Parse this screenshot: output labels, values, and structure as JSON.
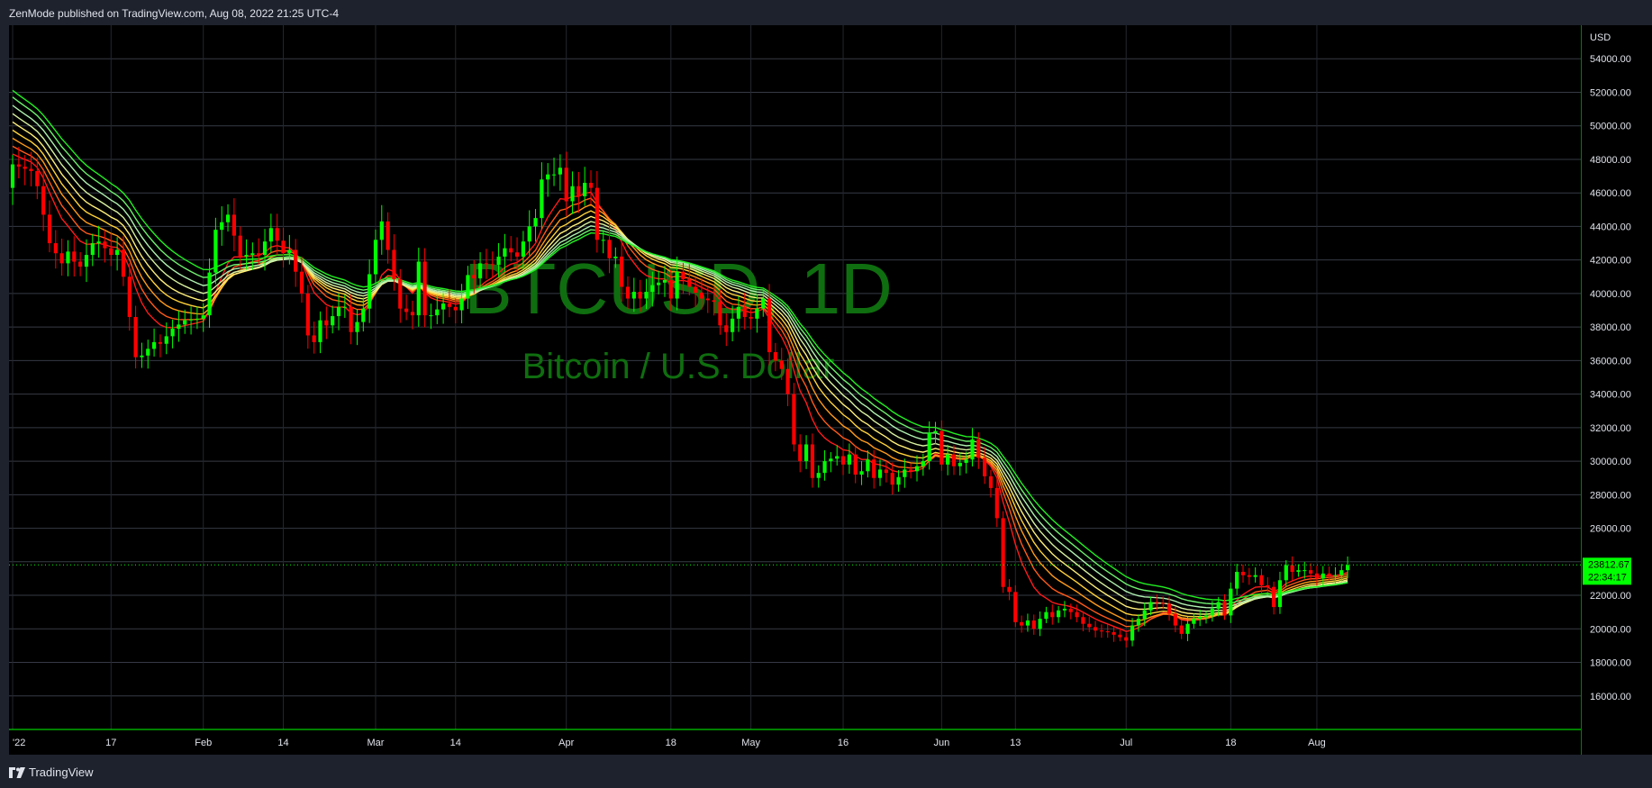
{
  "header": {
    "published_text": "ZenMode published on TradingView.com, Aug 08, 2022 21:25 UTC-4"
  },
  "watermark": {
    "symbol": "BTCUSD, 1D",
    "description": "Bitcoin / U.S. Dollar"
  },
  "footer": {
    "brand": "TradingView"
  },
  "price_scale": {
    "currency": "USD"
  },
  "last_price": {
    "value_text": "23812.67",
    "countdown_text": "22:34:17",
    "value": 23812.67
  },
  "colors": {
    "up": "#00ff00",
    "down": "#ff0000",
    "grid": "#363a45",
    "axis": "#00ff00",
    "watermark": "#0f6e0f"
  },
  "chart_data": {
    "type": "candlestick",
    "title": "BTCUSD, 1D",
    "subtitle": "Bitcoin / U.S. Dollar",
    "ylabel": "USD",
    "ylim": [
      14000,
      56000
    ],
    "grid": true,
    "y_ticks": [
      "54000.00",
      "52000.00",
      "50000.00",
      "48000.00",
      "46000.00",
      "44000.00",
      "42000.00",
      "40000.00",
      "38000.00",
      "36000.00",
      "34000.00",
      "32000.00",
      "30000.00",
      "28000.00",
      "26000.00",
      "24000.00",
      "22000.00",
      "20000.00",
      "18000.00",
      "16000.00"
    ],
    "x_ticks": [
      {
        "label": "'22",
        "day": 0
      },
      {
        "label": "17",
        "day": 16
      },
      {
        "label": "Feb",
        "day": 31
      },
      {
        "label": "14",
        "day": 44
      },
      {
        "label": "Mar",
        "day": 59
      },
      {
        "label": "14",
        "day": 72
      },
      {
        "label": "Apr",
        "day": 90
      },
      {
        "label": "18",
        "day": 107
      },
      {
        "label": "May",
        "day": 120
      },
      {
        "label": "16",
        "day": 135
      },
      {
        "label": "Jun",
        "day": 151
      },
      {
        "label": "13",
        "day": 163
      },
      {
        "label": "Jul",
        "day": 181
      },
      {
        "label": "18",
        "day": 198
      },
      {
        "label": "Aug",
        "day": 212
      }
    ],
    "close_anchors": [
      [
        0,
        47700
      ],
      [
        3,
        47300
      ],
      [
        4,
        46400
      ],
      [
        6,
        43000
      ],
      [
        8,
        41800
      ],
      [
        9,
        42500
      ],
      [
        10,
        41900
      ],
      [
        11,
        41600
      ],
      [
        13,
        43000
      ],
      [
        14,
        43100
      ],
      [
        16,
        42300
      ],
      [
        17,
        42600
      ],
      [
        18,
        41000
      ],
      [
        20,
        36200
      ],
      [
        21,
        36300
      ],
      [
        22,
        36700
      ],
      [
        23,
        37100
      ],
      [
        24,
        37000
      ],
      [
        26,
        37900
      ],
      [
        28,
        38400
      ],
      [
        30,
        38500
      ],
      [
        31,
        38700
      ],
      [
        33,
        43800
      ],
      [
        35,
        44700
      ],
      [
        37,
        42200
      ],
      [
        39,
        42400
      ],
      [
        40,
        42300
      ],
      [
        42,
        43900
      ],
      [
        44,
        42400
      ],
      [
        45,
        42600
      ],
      [
        47,
        40000
      ],
      [
        48,
        37500
      ],
      [
        49,
        37100
      ],
      [
        50,
        38400
      ],
      [
        51,
        38100
      ],
      [
        53,
        39200
      ],
      [
        54,
        39200
      ],
      [
        55,
        37700
      ],
      [
        56,
        38300
      ],
      [
        57,
        39100
      ],
      [
        59,
        43200
      ],
      [
        60,
        44300
      ],
      [
        61,
        42600
      ],
      [
        63,
        39100
      ],
      [
        65,
        38700
      ],
      [
        66,
        41900
      ],
      [
        67,
        38700
      ],
      [
        68,
        38700
      ],
      [
        70,
        39400
      ],
      [
        72,
        39000
      ],
      [
        73,
        39700
      ],
      [
        74,
        41100
      ],
      [
        75,
        40900
      ],
      [
        76,
        41800
      ],
      [
        78,
        41700
      ],
      [
        80,
        42700
      ],
      [
        82,
        42200
      ],
      [
        84,
        44000
      ],
      [
        85,
        44500
      ],
      [
        86,
        46800
      ],
      [
        87,
        47100
      ],
      [
        88,
        47100
      ],
      [
        89,
        47500
      ],
      [
        90,
        45500
      ],
      [
        91,
        46400
      ],
      [
        92,
        45800
      ],
      [
        93,
        46600
      ],
      [
        94,
        46300
      ],
      [
        95,
        43200
      ],
      [
        96,
        43200
      ],
      [
        97,
        42100
      ],
      [
        98,
        42200
      ],
      [
        99,
        40400
      ],
      [
        100,
        39700
      ],
      [
        101,
        40100
      ],
      [
        102,
        39700
      ],
      [
        104,
        40500
      ],
      [
        106,
        40800
      ],
      [
        107,
        39700
      ],
      [
        108,
        41300
      ],
      [
        110,
        40400
      ],
      [
        112,
        39700
      ],
      [
        114,
        39500
      ],
      [
        115,
        38100
      ],
      [
        116,
        37700
      ],
      [
        117,
        38500
      ],
      [
        118,
        39200
      ],
      [
        119,
        38600
      ],
      [
        120,
        38500
      ],
      [
        122,
        39700
      ],
      [
        123,
        36500
      ],
      [
        124,
        36000
      ],
      [
        125,
        35500
      ],
      [
        126,
        34000
      ],
      [
        127,
        31000
      ],
      [
        128,
        30000
      ],
      [
        129,
        31000
      ],
      [
        130,
        29000
      ],
      [
        131,
        29300
      ],
      [
        132,
        30000
      ],
      [
        134,
        30300
      ],
      [
        135,
        29800
      ],
      [
        136,
        30400
      ],
      [
        137,
        29200
      ],
      [
        138,
        29400
      ],
      [
        139,
        30100
      ],
      [
        140,
        29000
      ],
      [
        141,
        29500
      ],
      [
        142,
        29300
      ],
      [
        143,
        28600
      ],
      [
        145,
        29500
      ],
      [
        146,
        29400
      ],
      [
        148,
        30000
      ],
      [
        149,
        31700
      ],
      [
        150,
        31800
      ],
      [
        151,
        29800
      ],
      [
        152,
        30400
      ],
      [
        153,
        29700
      ],
      [
        154,
        29900
      ],
      [
        155,
        30100
      ],
      [
        156,
        31300
      ],
      [
        157,
        30200
      ],
      [
        158,
        29100
      ],
      [
        159,
        28400
      ],
      [
        160,
        26600
      ],
      [
        161,
        22500
      ],
      [
        162,
        22200
      ],
      [
        163,
        20400
      ],
      [
        164,
        20200
      ],
      [
        165,
        20500
      ],
      [
        166,
        20000
      ],
      [
        167,
        20600
      ],
      [
        168,
        21000
      ],
      [
        169,
        20700
      ],
      [
        170,
        21100
      ],
      [
        171,
        21200
      ],
      [
        172,
        21000
      ],
      [
        173,
        20700
      ],
      [
        174,
        20300
      ],
      [
        176,
        19900
      ],
      [
        178,
        19800
      ],
      [
        180,
        19500
      ],
      [
        181,
        19300
      ],
      [
        182,
        20200
      ],
      [
        183,
        20600
      ],
      [
        185,
        21600
      ],
      [
        187,
        21500
      ],
      [
        188,
        20900
      ],
      [
        189,
        20200
      ],
      [
        190,
        19700
      ],
      [
        191,
        20300
      ],
      [
        192,
        20600
      ],
      [
        194,
        20800
      ],
      [
        195,
        21200
      ],
      [
        196,
        21600
      ],
      [
        197,
        20800
      ],
      [
        198,
        22400
      ],
      [
        199,
        23400
      ],
      [
        200,
        23200
      ],
      [
        201,
        23100
      ],
      [
        202,
        23200
      ],
      [
        203,
        22600
      ],
      [
        204,
        22500
      ],
      [
        205,
        21300
      ],
      [
        206,
        22900
      ],
      [
        207,
        23800
      ],
      [
        208,
        23400
      ],
      [
        209,
        23500
      ],
      [
        210,
        23500
      ],
      [
        211,
        23300
      ],
      [
        212,
        23000
      ],
      [
        213,
        23300
      ],
      [
        214,
        23200
      ],
      [
        215,
        23200
      ],
      [
        216,
        23500
      ],
      [
        217,
        23800
      ]
    ],
    "ema_ribbon": {
      "colors": [
        "#ff1a1a",
        "#ff5a1a",
        "#ff9a1a",
        "#ffd23a",
        "#ffef7a",
        "#d8f0a0",
        "#b0f0b0",
        "#6fef6f",
        "#22ee22"
      ],
      "start_values": [
        48500,
        49000,
        49500,
        50000,
        50500,
        51000,
        51500,
        52000,
        52400
      ]
    }
  }
}
